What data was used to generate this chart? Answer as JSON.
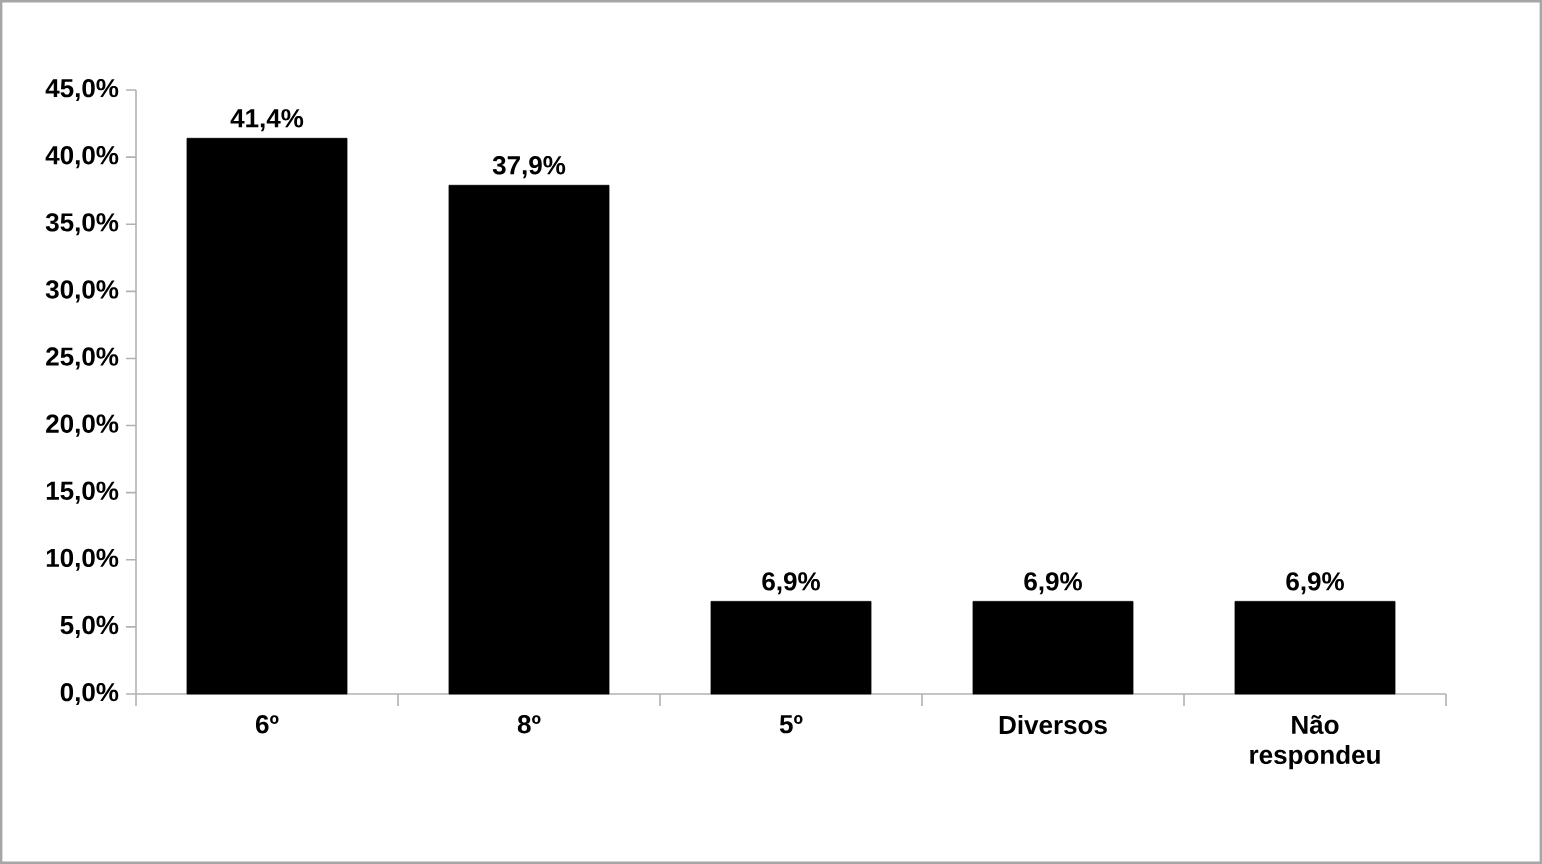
{
  "chart_data": {
    "type": "bar",
    "categories": [
      "6º",
      "8º",
      "5º",
      "Diversos",
      "Não respondeu"
    ],
    "values": [
      41.4,
      37.9,
      6.9,
      6.9,
      6.9
    ],
    "color": "#000000",
    "value_labels": [
      "41,4%",
      "37,9%",
      "6,9%",
      "6,9%",
      "6,9%"
    ],
    "ylim": [
      0,
      45
    ],
    "yticks": [
      {
        "value": 0,
        "label": "0,0%"
      },
      {
        "value": 5,
        "label": "5,0%"
      },
      {
        "value": 10,
        "label": "10,0%"
      },
      {
        "value": 15,
        "label": "15,0%"
      },
      {
        "value": 20,
        "label": "20,0%"
      },
      {
        "value": 25,
        "label": "25,0%"
      },
      {
        "value": 30,
        "label": "30,0%"
      },
      {
        "value": 35,
        "label": "35,0%"
      },
      {
        "value": 40,
        "label": "40,0%"
      },
      {
        "value": 45,
        "label": "45,0%"
      }
    ],
    "grid": false
  }
}
